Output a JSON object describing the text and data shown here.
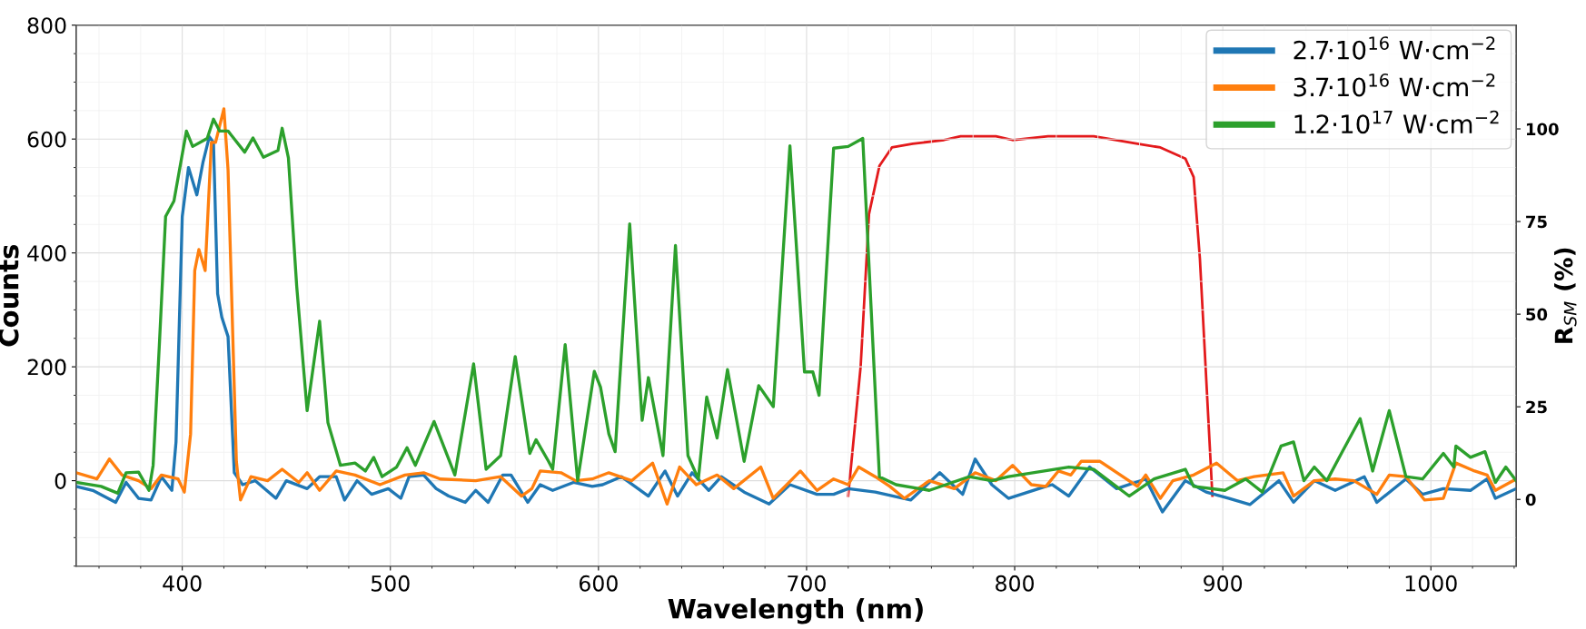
{
  "chart_data": {
    "type": "line",
    "xlabel": "Wavelength (nm)",
    "ylabel": "Counts",
    "y2label": "R$_{SM}$ (%)",
    "xlim": [
      349,
      1041
    ],
    "xticks": [
      400,
      500,
      600,
      700,
      800,
      900,
      1000
    ],
    "ylim": [
      -150,
      800
    ],
    "yticks": [
      0,
      200,
      400,
      600,
      800
    ],
    "y2lim": [
      -18,
      128
    ],
    "y2ticks": [
      0,
      25,
      50,
      75,
      100
    ],
    "grid": true,
    "legend": "top right",
    "line_style": "solid",
    "marker": "none",
    "series": [
      {
        "name": "2.7·10$^{16}$ W·cm$^{−2}$",
        "color": "#1f77b4",
        "x": [
          349,
          357,
          368,
          373,
          379,
          385,
          390,
          395,
          397,
          400,
          403,
          407,
          410,
          413,
          415,
          417,
          419,
          422,
          425,
          429,
          435,
          445,
          450,
          460,
          466,
          474,
          478,
          484,
          491,
          499,
          505,
          509,
          516,
          522,
          528,
          536,
          541,
          547,
          554,
          558,
          566,
          572,
          578,
          588,
          597,
          602,
          611,
          624,
          632,
          638,
          645,
          653,
          659,
          670,
          682,
          692,
          705,
          713,
          720,
          733,
          750,
          764,
          775,
          781,
          789,
          797,
          815,
          818,
          826,
          836,
          849,
          863,
          871,
          882,
          892,
          903,
          913,
          927,
          934,
          944,
          954,
          968,
          974,
          988,
          996,
          1006,
          1019,
          1027,
          1031,
          1041
        ],
        "values": [
          -10,
          -17,
          -38,
          -3,
          -31,
          -34,
          7,
          -17,
          68,
          464,
          550,
          502,
          560,
          604,
          594,
          328,
          287,
          253,
          14,
          -7,
          0,
          -31,
          0,
          -14,
          7,
          7,
          -34,
          0,
          -24,
          -14,
          -31,
          7,
          10,
          -14,
          -27,
          -38,
          -17,
          -38,
          10,
          10,
          -38,
          -7,
          -17,
          -3,
          -10,
          -7,
          7,
          -27,
          17,
          -27,
          14,
          -17,
          7,
          -20,
          -41,
          -7,
          -24,
          -24,
          -14,
          -20,
          -34,
          14,
          -24,
          38,
          -7,
          -31,
          -10,
          -7,
          -27,
          24,
          -14,
          3,
          -55,
          0,
          -20,
          -31,
          -42,
          0,
          -38,
          0,
          -17,
          7,
          -38,
          3,
          -24,
          -14,
          -17,
          3,
          -31,
          -14
        ]
      },
      {
        "name": "3.7·10$^{16}$ W·cm$^{−2}$",
        "color": "#ff7f0e",
        "x": [
          349,
          359,
          365,
          371,
          379,
          385,
          390,
          398,
          401,
          404,
          406,
          408,
          411,
          414,
          416,
          420,
          422,
          426,
          428,
          433,
          441,
          448,
          456,
          460,
          466,
          474,
          483,
          495,
          507,
          516,
          524,
          541,
          553,
          563,
          568,
          572,
          582,
          589,
          597,
          605,
          616,
          626,
          633,
          639,
          647,
          657,
          665,
          678,
          684,
          697,
          705,
          713,
          720,
          725,
          733,
          740,
          747,
          759,
          771,
          781,
          791,
          799,
          808,
          815,
          821,
          827,
          832,
          841,
          859,
          863,
          870,
          876,
          886,
          897,
          907,
          915,
          929,
          934,
          944,
          954,
          963,
          974,
          980,
          988,
          997,
          1006,
          1012,
          1021,
          1027,
          1031,
          1041
        ],
        "values": [
          14,
          3,
          38,
          10,
          0,
          -14,
          10,
          3,
          -20,
          82,
          369,
          406,
          369,
          594,
          594,
          653,
          546,
          34,
          -34,
          7,
          0,
          20,
          -3,
          14,
          -17,
          17,
          10,
          -7,
          10,
          14,
          3,
          0,
          7,
          -27,
          -14,
          17,
          14,
          0,
          3,
          14,
          0,
          31,
          -41,
          24,
          -7,
          10,
          -14,
          24,
          -31,
          17,
          -17,
          3,
          -7,
          24,
          7,
          -10,
          -31,
          0,
          -14,
          14,
          0,
          27,
          -7,
          -10,
          17,
          10,
          34,
          34,
          -10,
          10,
          -31,
          0,
          10,
          31,
          0,
          7,
          14,
          -27,
          0,
          3,
          0,
          -24,
          10,
          7,
          -34,
          -31,
          31,
          17,
          10,
          -17,
          3
        ]
      },
      {
        "name": "1.2·10$^{17}$ W·cm$^{−2}$",
        "color": "#2ca02c",
        "x": [
          349,
          361,
          369,
          373,
          379,
          384,
          386,
          389,
          392,
          396,
          399,
          402,
          405,
          412,
          415,
          418,
          422,
          430,
          434,
          439,
          446,
          448,
          451,
          455,
          460,
          466,
          470,
          476,
          483,
          488,
          492,
          496,
          503,
          508,
          512,
          521,
          531,
          540,
          546,
          553,
          560,
          567,
          570,
          576,
          578,
          584,
          590,
          598,
          601,
          605,
          608,
          615,
          621,
          624,
          631,
          637,
          643,
          648,
          652,
          657,
          662,
          670,
          677,
          684,
          692,
          699,
          703,
          706,
          713,
          720,
          727,
          735,
          743,
          759,
          778,
          789,
          797,
          826,
          838,
          855,
          867,
          882,
          886,
          901,
          911,
          919,
          928,
          934,
          939,
          944,
          950,
          957,
          966,
          972,
          980,
          988,
          996,
          1006,
          1011,
          1012,
          1019,
          1026,
          1031,
          1036,
          1041
        ],
        "values": [
          -3,
          -10,
          -22,
          14,
          15,
          -17,
          27,
          239,
          464,
          491,
          553,
          614,
          587,
          601,
          635,
          614,
          614,
          577,
          602,
          568,
          580,
          619,
          567,
          341,
          123,
          280,
          102,
          27,
          31,
          17,
          41,
          7,
          24,
          58,
          27,
          104,
          10,
          205,
          20,
          44,
          218,
          48,
          72,
          34,
          20,
          239,
          0,
          192,
          164,
          82,
          51,
          451,
          106,
          181,
          44,
          413,
          44,
          3,
          147,
          75,
          195,
          34,
          167,
          130,
          588,
          191,
          191,
          150,
          584,
          587,
          601,
          7,
          -7,
          -17,
          7,
          0,
          7,
          24,
          20,
          -27,
          3,
          20,
          -10,
          -17,
          3,
          -20,
          61,
          68,
          0,
          24,
          0,
          48,
          109,
          17,
          123,
          7,
          3,
          48,
          24,
          61,
          41,
          51,
          -3,
          24,
          0
        ]
      },
      {
        "axis": "y2",
        "color": "#e31a1c",
        "x": [
          720,
          726,
          730,
          735,
          741,
          751,
          766,
          774,
          791,
          799,
          816,
          824,
          838,
          859,
          870,
          882,
          886,
          889,
          895
        ],
        "values": [
          1,
          36,
          77,
          90,
          95,
          96,
          97,
          98,
          98,
          97,
          98,
          98,
          98,
          96,
          95,
          92,
          87,
          65,
          1
        ]
      }
    ]
  }
}
